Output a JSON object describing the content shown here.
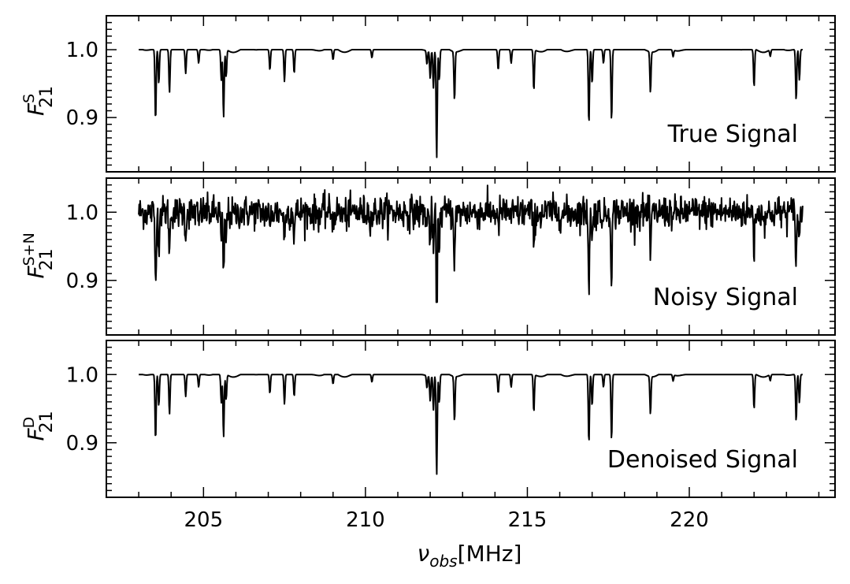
{
  "chart_data": {
    "type": "line",
    "xlabel": {
      "symbol": "ν",
      "subscript": "obs",
      "unit": "[MHz]"
    },
    "xlim": [
      202.0,
      224.5
    ],
    "xticks": [
      205,
      210,
      215,
      220
    ],
    "ylim": [
      0.82,
      1.05
    ],
    "yticks": [
      0.9,
      1.0
    ],
    "ytick_labels": [
      "0.9",
      "1.0"
    ],
    "panels": [
      {
        "id": "true",
        "ylabel": {
          "base": "F",
          "sub": "21",
          "sup": "S"
        },
        "annotation": "True Signal",
        "series": [
          {
            "noise": 0.0,
            "absorption_scale": 1.0
          }
        ]
      },
      {
        "id": "noisy",
        "ylabel": {
          "base": "F",
          "sub": "21",
          "sup": "S+N"
        },
        "annotation": "Noisy Signal",
        "series": [
          {
            "noise": 0.012,
            "absorption_scale": 1.0
          }
        ]
      },
      {
        "id": "denoised",
        "ylabel": {
          "base": "F",
          "sub": "21",
          "sup": "D"
        },
        "annotation": "Denoised Signal",
        "series": [
          {
            "noise": 0.0,
            "absorption_scale": 0.92
          }
        ]
      }
    ],
    "x_range": [
      203.0,
      223.5
    ],
    "absorption_lines": [
      {
        "x": 203.52,
        "depth": 0.105
      },
      {
        "x": 203.62,
        "depth": 0.05
      },
      {
        "x": 203.95,
        "depth": 0.063
      },
      {
        "x": 204.45,
        "depth": 0.035
      },
      {
        "x": 204.85,
        "depth": 0.02
      },
      {
        "x": 205.55,
        "depth": 0.045
      },
      {
        "x": 205.62,
        "depth": 0.1
      },
      {
        "x": 205.7,
        "depth": 0.04
      },
      {
        "x": 207.05,
        "depth": 0.03
      },
      {
        "x": 207.5,
        "depth": 0.047
      },
      {
        "x": 207.8,
        "depth": 0.035
      },
      {
        "x": 209.0,
        "depth": 0.015
      },
      {
        "x": 210.2,
        "depth": 0.012
      },
      {
        "x": 211.9,
        "depth": 0.02
      },
      {
        "x": 212.0,
        "depth": 0.04
      },
      {
        "x": 212.1,
        "depth": 0.055
      },
      {
        "x": 212.2,
        "depth": 0.16
      },
      {
        "x": 212.28,
        "depth": 0.045
      },
      {
        "x": 212.75,
        "depth": 0.072
      },
      {
        "x": 214.1,
        "depth": 0.03
      },
      {
        "x": 214.5,
        "depth": 0.02
      },
      {
        "x": 215.2,
        "depth": 0.06
      },
      {
        "x": 216.9,
        "depth": 0.11
      },
      {
        "x": 217.0,
        "depth": 0.05
      },
      {
        "x": 217.35,
        "depth": 0.02
      },
      {
        "x": 217.6,
        "depth": 0.105
      },
      {
        "x": 218.8,
        "depth": 0.06
      },
      {
        "x": 219.5,
        "depth": 0.01
      },
      {
        "x": 222.0,
        "depth": 0.055
      },
      {
        "x": 222.5,
        "depth": 0.01
      },
      {
        "x": 223.3,
        "depth": 0.075
      },
      {
        "x": 223.4,
        "depth": 0.045
      }
    ]
  }
}
